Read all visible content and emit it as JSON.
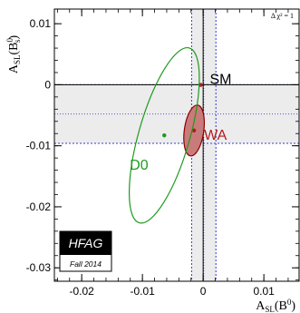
{
  "chart_data": {
    "type": "scatter",
    "title": "",
    "xlabel": "A_SL(B⁰)",
    "ylabel": "A_SL(B⁰_s)",
    "xlim": [
      -0.0245,
      0.0158
    ],
    "ylim": [
      -0.0322,
      0.0124
    ],
    "x_ticks": [
      -0.02,
      -0.01,
      0,
      0.01
    ],
    "x_tick_labels": [
      "-0.02",
      "-0.01",
      "0",
      "0.01"
    ],
    "y_ticks": [
      0.01,
      0,
      -0.01,
      -0.02,
      -0.03
    ],
    "y_tick_labels": [
      "0.01",
      "0",
      "-0.01",
      "-0.02",
      "-0.03"
    ],
    "annotation": "Δ χ² = 1",
    "bands": [
      {
        "name": "B_s band",
        "y_center": -0.0048,
        "y_sigma": 0.0048,
        "color": "#ececec",
        "line_color": "#3a3ad9"
      },
      {
        "name": "B_d band",
        "x_center": 0.0001,
        "x_sigma": 0.002,
        "color": "#ececec",
        "line_color": "#3a3ad9"
      }
    ],
    "points": [
      {
        "label": "SM",
        "x": -0.0004,
        "y": -2e-05,
        "color": "#b31b1b"
      },
      {
        "label": "WA",
        "x": -0.0015,
        "y": -0.0075,
        "color": "#b31b1b",
        "ellipse": {
          "rx": 0.0016,
          "ry": 0.0042,
          "rotation_deg": 8,
          "fill": "#c97b7b",
          "stroke": "#8b0000"
        }
      },
      {
        "label": "D0",
        "x": -0.0064,
        "y": -0.0083,
        "color": "#1d9a1d",
        "ellipse": {
          "rx": 0.0042,
          "ry": 0.0149,
          "rotation_deg": 16,
          "fill": "none",
          "stroke": "#1d9a1d"
        }
      }
    ],
    "grid": false,
    "legend": "none"
  },
  "logo": {
    "main": "HFAG",
    "sub": "Fall 2014"
  }
}
